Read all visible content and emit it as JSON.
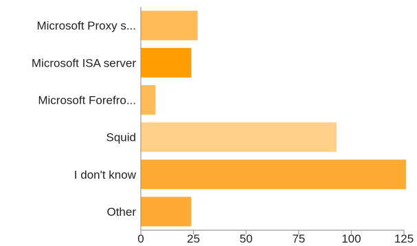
{
  "chart_data": {
    "type": "bar",
    "orientation": "horizontal",
    "categories": [
      "Microsoft Proxy s...",
      "Microsoft ISA server",
      "Microsoft Forefro...",
      "Squid",
      "I don't know",
      "Other"
    ],
    "values": [
      27,
      24,
      7,
      93,
      126,
      24
    ],
    "bar_colors": [
      "#ffbb55",
      "#ff9d00",
      "#ffbb55",
      "#ffd08a",
      "#ffab33",
      "#ffab33"
    ],
    "xticks": [
      "0",
      "25",
      "50",
      "75",
      "100",
      "125"
    ],
    "xlim": [
      0,
      125
    ],
    "grid": false,
    "title": "",
    "xlabel": "",
    "ylabel": ""
  }
}
